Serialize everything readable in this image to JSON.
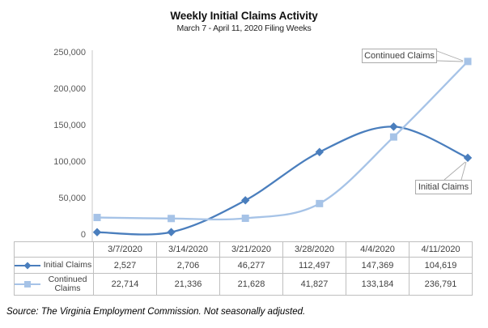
{
  "header": {
    "title": "Weekly Initial Claims Activity",
    "subtitle": "March 7 - April 11, 2020 Filing Weeks"
  },
  "callouts": {
    "continued_label": "Continued Claims",
    "initial_label": "Initial Claims"
  },
  "chart_data": {
    "type": "line",
    "title": "Weekly Initial Claims Activity",
    "subtitle": "March 7 - April 11, 2020 Filing Weeks",
    "x": [
      "3/7/2020",
      "3/14/2020",
      "3/21/2020",
      "3/28/2020",
      "4/4/2020",
      "4/11/2020"
    ],
    "series": [
      {
        "name": "Initial Claims",
        "values": [
          2527,
          2706,
          46277,
          112497,
          147369,
          104619
        ],
        "color": "#4a7ebd",
        "marker": "diamond"
      },
      {
        "name": "Continued Claims",
        "values": [
          22714,
          21336,
          21628,
          41827,
          133184,
          236791
        ],
        "color": "#a6c3e7",
        "marker": "square"
      }
    ],
    "y_ticks": [
      0,
      50000,
      100000,
      150000,
      200000,
      250000
    ],
    "y_tick_labels": [
      "0",
      "50,000",
      "100,000",
      "150,000",
      "200,000",
      "250,000"
    ],
    "ylim": [
      0,
      250000
    ],
    "grid": false,
    "smooth": true,
    "axis_color": "#c9c9c9",
    "tick_label_color": "#595959",
    "legend_position": "data-table",
    "annotations": [
      "Continued Claims",
      "Initial Claims"
    ]
  },
  "table": {
    "dates": [
      "3/7/2020",
      "3/14/2020",
      "3/21/2020",
      "3/28/2020",
      "4/4/2020",
      "4/11/2020"
    ],
    "rows": [
      {
        "label": "Initial Claims",
        "values": [
          "2,527",
          "2,706",
          "46,277",
          "112,497",
          "147,369",
          "104,619"
        ]
      },
      {
        "label": "Continued Claims",
        "values": [
          "22,714",
          "21,336",
          "21,628",
          "41,827",
          "133,184",
          "236,791"
        ]
      }
    ]
  },
  "footer": {
    "source_note": "Source: The Virginia Employment Commission. Not seasonally adjusted."
  }
}
